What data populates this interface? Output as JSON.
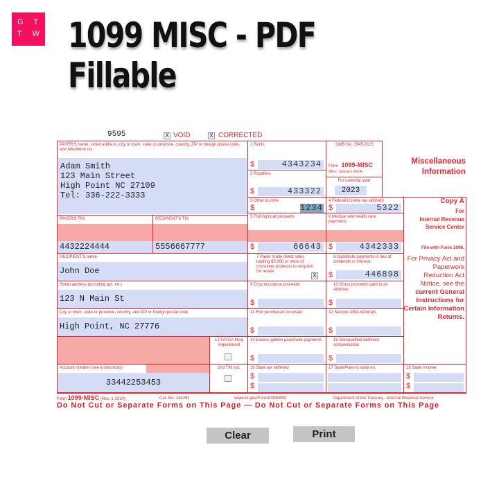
{
  "header": {
    "logo_text": "G T T W",
    "title": "1099 MISC - PDF Fillable"
  },
  "form": {
    "code": "9595",
    "void_label": "VOID",
    "corrected_label": "CORRECTED",
    "void_checked": "X",
    "corrected_checked": "X",
    "payer_label": "PAYER'S name, street address, city or town, state or province, country, ZIP or foreign postal code, and telephone no.",
    "payer_lines": [
      "Adam Smith",
      "123 Main Street",
      "High Point NC 27109",
      "Tel: 336-222-3333"
    ],
    "payer_tin_label": "PAYER'S TIN",
    "payer_tin": "4432224444",
    "recipient_tin_label": "RECIPIENT'S TIN",
    "recipient_tin": "5556667777",
    "recipient_name_label": "RECIPIENT'S name",
    "recipient_name": "John Doe",
    "street_label": "Street address (including apt. no.)",
    "street": "123 N Main St",
    "city_label": "City or town, state or province, country, and ZIP or foreign postal code",
    "city": "High Point, NC 27776",
    "fatca_label": "13 FATCA filing requirement",
    "account_label": "Account number (see instructions)",
    "account": "33442253453",
    "second_tin_label": "2nd TIN not.",
    "dollar": "$",
    "box1_label": "1 Rents",
    "box1": "4343234",
    "box2_label": "2 Royalties",
    "box2": "433322",
    "box3_label": "3 Other income",
    "box3": "1234",
    "box4_label": "4 Federal income tax withheld",
    "box4": "5322",
    "box5_label": "5 Fishing boat proceeds",
    "box5": "66643",
    "box6_label": "6 Medical and health care payments",
    "box6": "4342333",
    "box7_label": "7 Payer made direct sales totaling $5,000 or more of consumer products to recipient for resale",
    "box7_checked": "X",
    "box8_label": "8 Substitute payments in lieu of dividends or interest",
    "box8": "446898",
    "box9_label": "9 Crop insurance proceeds",
    "box10_label": "10 Gross proceeds paid to an attorney",
    "box11_label": "11 Fish purchased for resale",
    "box12_label": "12 Section 409A deferrals",
    "box14_label": "14 Excess golden parachute payments",
    "box15_label": "15 Nonqualified deferred compensation",
    "box16_label": "16 State tax withheld",
    "box17_label": "17 State/Payer's state no.",
    "box18_label": "18 State income",
    "omb": "OMB No. 1545-0115",
    "form_prefix": "Form",
    "form_name": "1099-MISC",
    "rev": "(Rev. January 2024)",
    "cal_year_label": "For calendar year",
    "cal_year": "2023",
    "side_title": "Miscellaneous Information",
    "copy_a": "Copy A",
    "copy_for": "For",
    "irs_center": "Internal Revenue Service Center",
    "file_with": "File with Form 1096.",
    "privacy": "For Privacy Act and Paperwork Reduction Act Notice, see the",
    "instructions": "current General Instructions for Certain Information Returns.",
    "footer_form": "1099-MISC",
    "footer_rev": "(Rev. 1-2024)",
    "footer_cat": "Cat. No. 14425J",
    "footer_url": "www.irs.gov/Form1099MISC",
    "footer_dept": "Department of the Treasury - Internal Revenue Service",
    "do_not_cut": "Do Not Cut or Separate Forms on This Page — Do Not Cut or Separate Forms on This Page"
  },
  "buttons": {
    "clear": "Clear",
    "print": "Print"
  },
  "colors": {
    "form_red": "#e2262e",
    "field_blue": "#d5dcf5",
    "shade_pink": "#f6a9a5",
    "logo": "#f5105f"
  }
}
